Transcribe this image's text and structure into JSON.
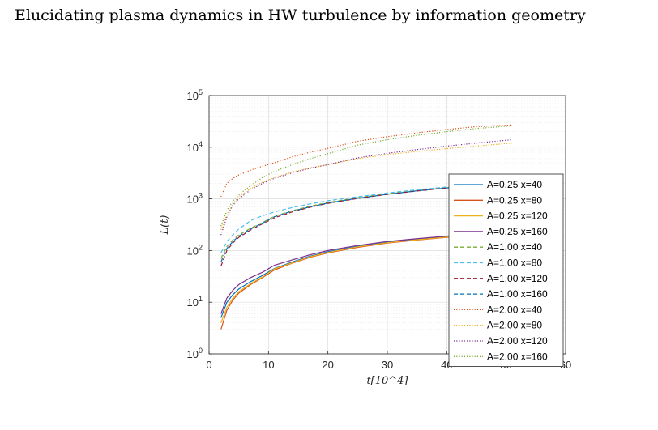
{
  "header": {
    "title": "Elucidating plasma dynamics in HW turbulence by information geometry"
  },
  "chart_data": {
    "type": "line",
    "title": "",
    "xlabel": "t[10^4]",
    "ylabel": "L(t)",
    "xlim": [
      0,
      60
    ],
    "ylim": [
      1,
      100000
    ],
    "yscale": "log",
    "x_ticks": [
      "0",
      "10",
      "20",
      "30",
      "40",
      "50",
      "60"
    ],
    "y_ticks": [
      {
        "base": "10",
        "exp": "0"
      },
      {
        "base": "10",
        "exp": "1"
      },
      {
        "base": "10",
        "exp": "2"
      },
      {
        "base": "10",
        "exp": "3"
      },
      {
        "base": "10",
        "exp": "4"
      },
      {
        "base": "10",
        "exp": "5"
      }
    ],
    "grid": true,
    "legend_position": "right-inside",
    "x": [
      2,
      3,
      4,
      5,
      7,
      9,
      11,
      14,
      17,
      20,
      25,
      30,
      35,
      40,
      45,
      51
    ],
    "series": [
      {
        "name": "A=0.25 x=40",
        "color": "#0072BD",
        "dash": "solid",
        "values": [
          5,
          10,
          14,
          18,
          25,
          33,
          45,
          60,
          78,
          95,
          120,
          145,
          165,
          185,
          200,
          210
        ]
      },
      {
        "name": "A=0.25 x=80",
        "color": "#D95319",
        "dash": "solid",
        "values": [
          3,
          7,
          11,
          15,
          22,
          30,
          42,
          57,
          74,
          90,
          115,
          140,
          160,
          180,
          195,
          205
        ]
      },
      {
        "name": "A=0.25 x=120",
        "color": "#EDB120",
        "dash": "solid",
        "values": [
          4,
          8,
          12,
          16,
          23,
          31,
          44,
          58,
          76,
          92,
          118,
          142,
          162,
          182,
          197,
          207
        ]
      },
      {
        "name": "A=0.25 x=160",
        "color": "#7E2F8E",
        "dash": "solid",
        "values": [
          6,
          12,
          17,
          22,
          30,
          38,
          52,
          66,
          83,
          100,
          125,
          150,
          170,
          190,
          205,
          215
        ]
      },
      {
        "name": "A=1,00 x=40",
        "color": "#77AC30",
        "dash": "dashed",
        "values": [
          70,
          120,
          160,
          200,
          270,
          350,
          460,
          590,
          720,
          850,
          1050,
          1250,
          1450,
          1650,
          1800,
          1950
        ]
      },
      {
        "name": "A=1.00 x=80",
        "color": "#4DBEEE",
        "dash": "dashed",
        "values": [
          90,
          150,
          200,
          260,
          380,
          470,
          560,
          680,
          800,
          920,
          1100,
          1300,
          1500,
          1700,
          1850,
          2000
        ]
      },
      {
        "name": "A=1.00 x=120",
        "color": "#A2142F",
        "dash": "dashed",
        "values": [
          50,
          100,
          140,
          180,
          250,
          330,
          430,
          560,
          690,
          820,
          1020,
          1220,
          1420,
          1620,
          1780,
          1920
        ]
      },
      {
        "name": "A=1.00 x=160",
        "color": "#0072BD",
        "dash": "dashed",
        "values": [
          60,
          110,
          150,
          190,
          260,
          340,
          450,
          580,
          700,
          830,
          1030,
          1230,
          1430,
          1630,
          1790,
          1930
        ]
      },
      {
        "name": "A=2.00 x=40",
        "color": "#D95319",
        "dash": "dotted",
        "values": [
          1100,
          2000,
          2500,
          2900,
          3600,
          4300,
          5000,
          6500,
          8000,
          9500,
          13000,
          16000,
          19000,
          22000,
          25000,
          27000
        ]
      },
      {
        "name": "A=2.00 x=80",
        "color": "#EDB120",
        "dash": "dotted",
        "values": [
          250,
          500,
          800,
          1100,
          1600,
          2100,
          2600,
          3300,
          4000,
          4600,
          6000,
          7200,
          8300,
          9400,
          10500,
          12000
        ]
      },
      {
        "name": "A=2.00 x=120",
        "color": "#7E2F8E",
        "dash": "dotted",
        "values": [
          200,
          450,
          750,
          1000,
          1500,
          2000,
          2500,
          3200,
          3900,
          4600,
          6200,
          7600,
          9000,
          10500,
          12000,
          14000
        ]
      },
      {
        "name": "A=2.00 x=160",
        "color": "#77AC30",
        "dash": "dotted",
        "values": [
          300,
          600,
          900,
          1200,
          1800,
          2600,
          3400,
          4600,
          6000,
          7500,
          11000,
          14000,
          17000,
          20000,
          23000,
          26000
        ]
      }
    ]
  }
}
